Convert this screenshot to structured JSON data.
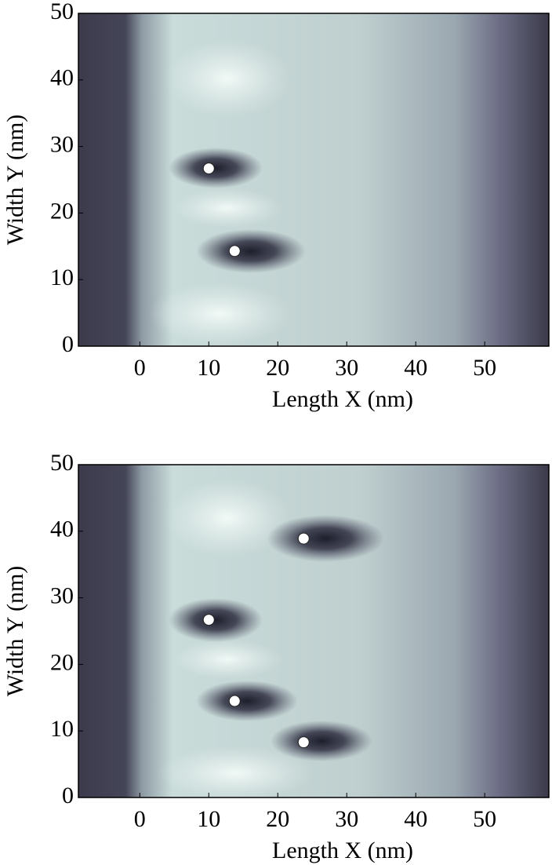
{
  "chart_data": [
    {
      "type": "scatter",
      "xlabel": "Length X (nm)",
      "ylabel": "Width Y (nm)",
      "x": [
        10,
        13.75
      ],
      "y": [
        26.7,
        14.3
      ],
      "color": "#ffffff",
      "xlim": [
        -8.9,
        59.3
      ],
      "ylim": [
        0,
        50
      ],
      "xticks": [
        0,
        10,
        20,
        30,
        40,
        50
      ],
      "yticks": [
        0,
        10,
        20,
        30,
        40,
        50
      ]
    },
    {
      "type": "scatter",
      "xlabel": "Length X (nm)",
      "ylabel": "Width Y (nm)",
      "x": [
        10,
        13.75,
        23.75,
        23.75
      ],
      "y": [
        26.7,
        14.5,
        38.9,
        8.3
      ],
      "color": "#ffffff",
      "xlim": [
        -8.9,
        59.3
      ],
      "ylim": [
        0,
        50
      ],
      "xticks": [
        0,
        10,
        20,
        30,
        40,
        50
      ],
      "yticks": [
        0,
        10,
        20,
        30,
        40,
        50
      ]
    }
  ]
}
